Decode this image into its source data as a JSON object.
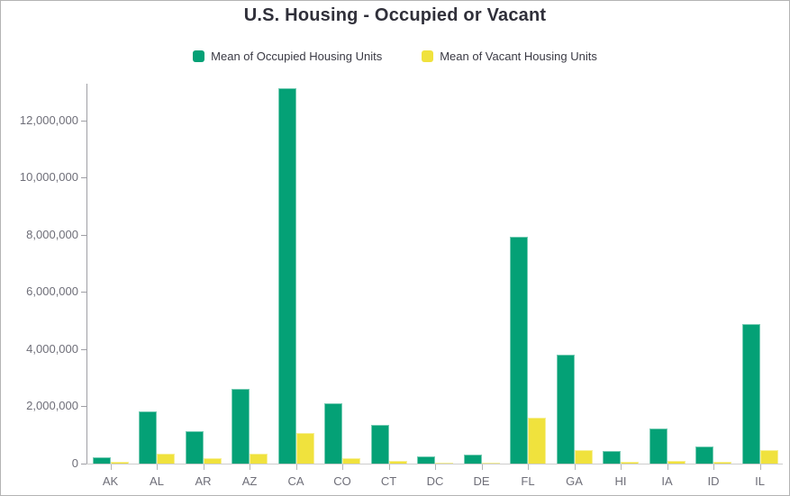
{
  "title": "U.S. Housing - Occupied or Vacant",
  "legend": {
    "items": [
      {
        "key": "occupied",
        "label": "Mean of Occupied Housing Units",
        "color": "#04A176"
      },
      {
        "key": "vacant",
        "label": "Mean of Vacant Housing Units",
        "color": "#F0E23D"
      }
    ]
  },
  "chart_data": {
    "type": "bar",
    "title": "U.S. Housing - Occupied or Vacant",
    "categories": [
      "AK",
      "AL",
      "AR",
      "AZ",
      "CA",
      "CO",
      "CT",
      "DC",
      "DE",
      "FL",
      "GA",
      "HI",
      "IA",
      "ID",
      "IL"
    ],
    "series": [
      {
        "name": "Mean of Occupied Housing Units",
        "color": "#04A176",
        "values": [
          230000,
          1830000,
          1140000,
          2600000,
          13130000,
          2100000,
          1360000,
          250000,
          320000,
          7930000,
          3800000,
          440000,
          1230000,
          600000,
          4880000
        ]
      },
      {
        "name": "Mean of Vacant Housing Units",
        "color": "#F0E23D",
        "values": [
          60000,
          340000,
          190000,
          350000,
          1070000,
          190000,
          100000,
          30000,
          40000,
          1600000,
          460000,
          50000,
          110000,
          50000,
          460000
        ]
      }
    ],
    "xlabel": "",
    "ylabel": "",
    "ylim": [
      0,
      13290000
    ],
    "yticks": [
      0,
      2000000,
      4000000,
      6000000,
      8000000,
      10000000,
      12000000
    ],
    "ytick_labels": [
      "0",
      "2,000,000",
      "4,000,000",
      "6,000,000",
      "8,000,000",
      "10,000,000",
      "12,000,000"
    ],
    "grid": false,
    "legend_position": "top"
  }
}
